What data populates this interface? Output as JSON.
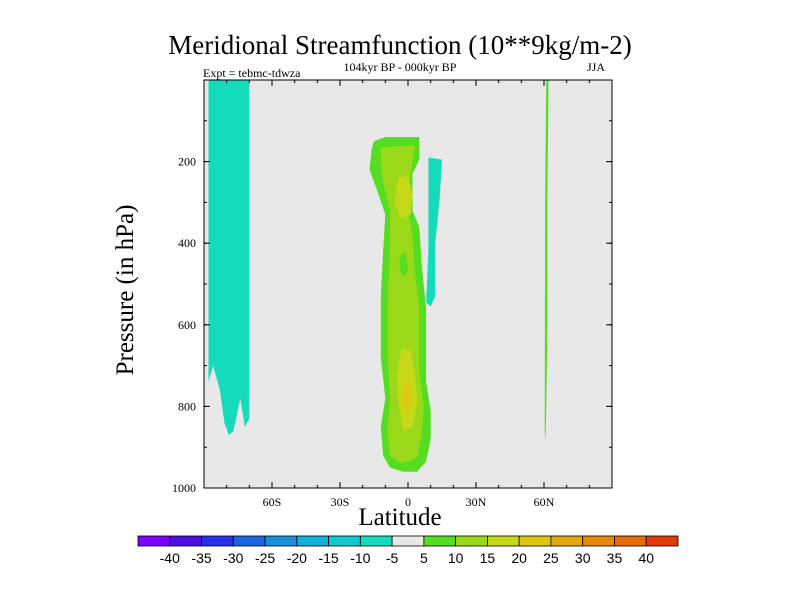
{
  "chart_data": {
    "type": "heatmap",
    "title": "Meridional Streamfunction (10**9kg/m-2)",
    "subtitle_left": "Expt = tebmc-tdwza",
    "subtitle_center": "104kyr BP - 000kyr BP",
    "subtitle_right": "JJA",
    "xlabel": "Latitude",
    "ylabel": "Pressure (in hPa)",
    "xlim": [
      -90,
      90
    ],
    "ylim": [
      1000,
      0
    ],
    "x_ticks": [
      {
        "value": -60,
        "label": "60S"
      },
      {
        "value": -30,
        "label": "30S"
      },
      {
        "value": 0,
        "label": "0"
      },
      {
        "value": 30,
        "label": "30N"
      },
      {
        "value": 60,
        "label": "60N"
      }
    ],
    "y_ticks": [
      {
        "value": 200,
        "label": "200"
      },
      {
        "value": 400,
        "label": "400"
      },
      {
        "value": 600,
        "label": "600"
      },
      {
        "value": 800,
        "label": "800"
      },
      {
        "value": 1000,
        "label": "1000"
      }
    ],
    "colorbar": {
      "labels": [
        "-40",
        "-35",
        "-30",
        "-25",
        "-20",
        "-15",
        "-10",
        "-5",
        "5",
        "10",
        "15",
        "20",
        "25",
        "30",
        "35",
        "40"
      ],
      "colors": [
        "#7f00ff",
        "#4f0fe0",
        "#2a2fe8",
        "#1c63e0",
        "#1691da",
        "#10b0db",
        "#12c8cf",
        "#13dbbc",
        "#e8e8e8",
        "#55dd22",
        "#9ad91a",
        "#c6d818",
        "#e0c610",
        "#e2a80d",
        "#e58a0b",
        "#e56a08",
        "#e23c0a"
      ]
    },
    "regions": [
      {
        "name": "south-polar-cell",
        "level": -10,
        "color": "#13dbbc",
        "points": [
          [
            -88,
            0
          ],
          [
            -70,
            0
          ],
          [
            -70,
            830
          ],
          [
            -72,
            850
          ],
          [
            -74,
            780
          ],
          [
            -77,
            860
          ],
          [
            -79,
            870
          ],
          [
            -81,
            840
          ],
          [
            -83,
            760
          ],
          [
            -86,
            700
          ],
          [
            -88,
            740
          ]
        ]
      },
      {
        "name": "tropical-cell-outer",
        "level": 5,
        "color": "#55dd22",
        "points": [
          [
            -15,
            150
          ],
          [
            -10,
            140
          ],
          [
            5,
            140
          ],
          [
            5,
            195
          ],
          [
            2,
            230
          ],
          [
            2,
            320
          ],
          [
            5,
            360
          ],
          [
            6,
            450
          ],
          [
            8,
            560
          ],
          [
            8,
            740
          ],
          [
            10,
            810
          ],
          [
            10,
            880
          ],
          [
            8,
            935
          ],
          [
            4,
            960
          ],
          [
            -2,
            960
          ],
          [
            -8,
            950
          ],
          [
            -11,
            920
          ],
          [
            -12,
            850
          ],
          [
            -10,
            780
          ],
          [
            -12,
            680
          ],
          [
            -12,
            530
          ],
          [
            -11,
            420
          ],
          [
            -10,
            330
          ],
          [
            -13,
            280
          ],
          [
            -17,
            220
          ],
          [
            -16,
            170
          ]
        ]
      },
      {
        "name": "tropical-cell-inner",
        "level": 10,
        "color": "#9ad91a",
        "points": [
          [
            -12,
            165
          ],
          [
            3,
            160
          ],
          [
            1,
            240
          ],
          [
            0,
            320
          ],
          [
            2,
            380
          ],
          [
            3,
            470
          ],
          [
            5,
            560
          ],
          [
            5,
            720
          ],
          [
            7,
            800
          ],
          [
            6,
            870
          ],
          [
            4,
            925
          ],
          [
            -3,
            940
          ],
          [
            -8,
            920
          ],
          [
            -9,
            860
          ],
          [
            -8,
            780
          ],
          [
            -9,
            680
          ],
          [
            -9,
            540
          ],
          [
            -8,
            420
          ],
          [
            -8,
            320
          ],
          [
            -11,
            250
          ],
          [
            -12,
            200
          ]
        ]
      },
      {
        "name": "tropical-cell-core-upper",
        "level": 15,
        "color": "#c6d818",
        "points": [
          [
            -4,
            240
          ],
          [
            0,
            235
          ],
          [
            2,
            280
          ],
          [
            1,
            330
          ],
          [
            -3,
            340
          ],
          [
            -6,
            300
          ],
          [
            -5,
            260
          ]
        ]
      },
      {
        "name": "tropical-cell-core-lower",
        "level": 15,
        "color": "#c6d818",
        "points": [
          [
            -3,
            660
          ],
          [
            1,
            660
          ],
          [
            3,
            720
          ],
          [
            4,
            790
          ],
          [
            2,
            850
          ],
          [
            -2,
            860
          ],
          [
            -4,
            800
          ],
          [
            -5,
            730
          ]
        ]
      },
      {
        "name": "tropical-cell-core-max",
        "level": 20,
        "color": "#e0c610",
        "points": [
          [
            -1,
            740
          ],
          [
            1,
            745
          ],
          [
            1,
            800
          ],
          [
            0,
            815
          ],
          [
            -2,
            810
          ],
          [
            -2,
            760
          ]
        ]
      },
      {
        "name": "tropical-cell-hole",
        "level": 5,
        "color": "#55dd22",
        "points": [
          [
            -3,
            425
          ],
          [
            -1,
            425
          ],
          [
            0,
            460
          ],
          [
            -1,
            480
          ],
          [
            -3,
            475
          ],
          [
            -4,
            450
          ]
        ]
      },
      {
        "name": "tropical-negative-band",
        "level": -10,
        "color": "#13dbbc",
        "points": [
          [
            9,
            190
          ],
          [
            15,
            195
          ],
          [
            14,
            290
          ],
          [
            12,
            400
          ],
          [
            12,
            530
          ],
          [
            10,
            555
          ],
          [
            8,
            545
          ],
          [
            9,
            420
          ],
          [
            9,
            300
          ]
        ]
      },
      {
        "name": "north-high-latitude-band",
        "level": 5,
        "color": "#55dd22",
        "points": [
          [
            61,
            0
          ],
          [
            62,
            0
          ],
          [
            61.5,
            300
          ],
          [
            61.5,
            600
          ],
          [
            61,
            800
          ],
          [
            60.6,
            885
          ],
          [
            60.3,
            860
          ],
          [
            60.4,
            600
          ],
          [
            60.5,
            300
          ]
        ]
      }
    ]
  }
}
